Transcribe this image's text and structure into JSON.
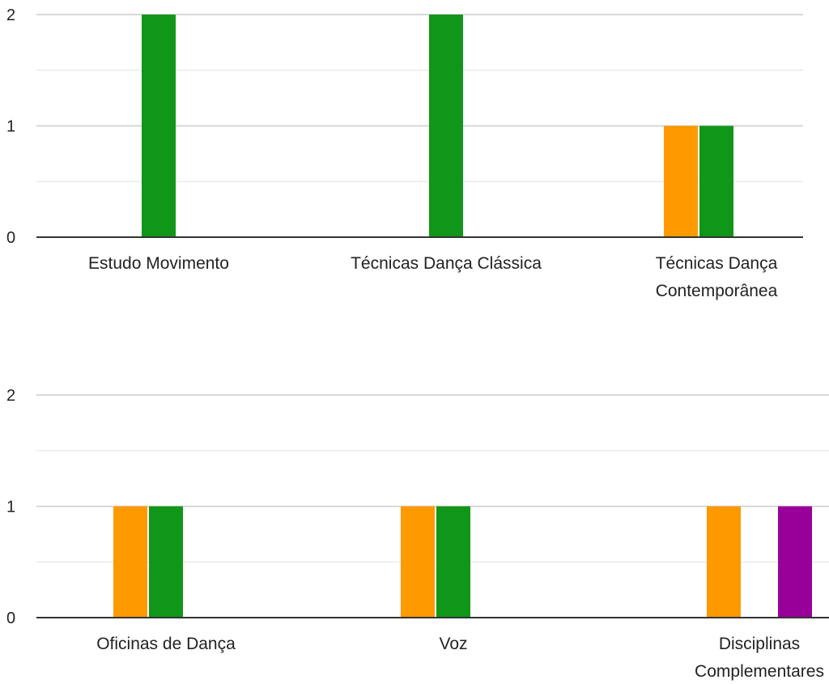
{
  "colors": {
    "orange": "#ff9900",
    "green": "#109618",
    "purple": "#990099",
    "major_grid": "#cccccc",
    "minor_grid": "#ebebeb",
    "baseline": "#333333"
  },
  "chart_data": [
    {
      "type": "bar",
      "categories": [
        [
          "Estudo Movimento"
        ],
        [
          "Técnicas Dança Clássica"
        ],
        [
          "Técnicas Dança",
          "Contemporânea"
        ]
      ],
      "series": [
        {
          "color_key": "orange",
          "values": [
            0,
            0,
            1
          ]
        },
        {
          "color_key": "green",
          "values": [
            2,
            2,
            1
          ]
        },
        {
          "color_key": "purple",
          "values": [
            0,
            0,
            0
          ]
        }
      ],
      "ylim": [
        0,
        2
      ],
      "yticks": [
        "0",
        "1",
        "2"
      ],
      "grid": true
    },
    {
      "type": "bar",
      "categories": [
        [
          "Oficinas de Dança"
        ],
        [
          "Voz"
        ],
        [
          "Disciplinas",
          "Complementares"
        ]
      ],
      "series": [
        {
          "color_key": "orange",
          "values": [
            1,
            1,
            1
          ]
        },
        {
          "color_key": "green",
          "values": [
            1,
            1,
            0
          ]
        },
        {
          "color_key": "purple",
          "values": [
            0,
            0,
            1
          ]
        }
      ],
      "ylim": [
        0,
        2
      ],
      "yticks": [
        "0",
        "1",
        "2"
      ],
      "grid": true
    }
  ]
}
